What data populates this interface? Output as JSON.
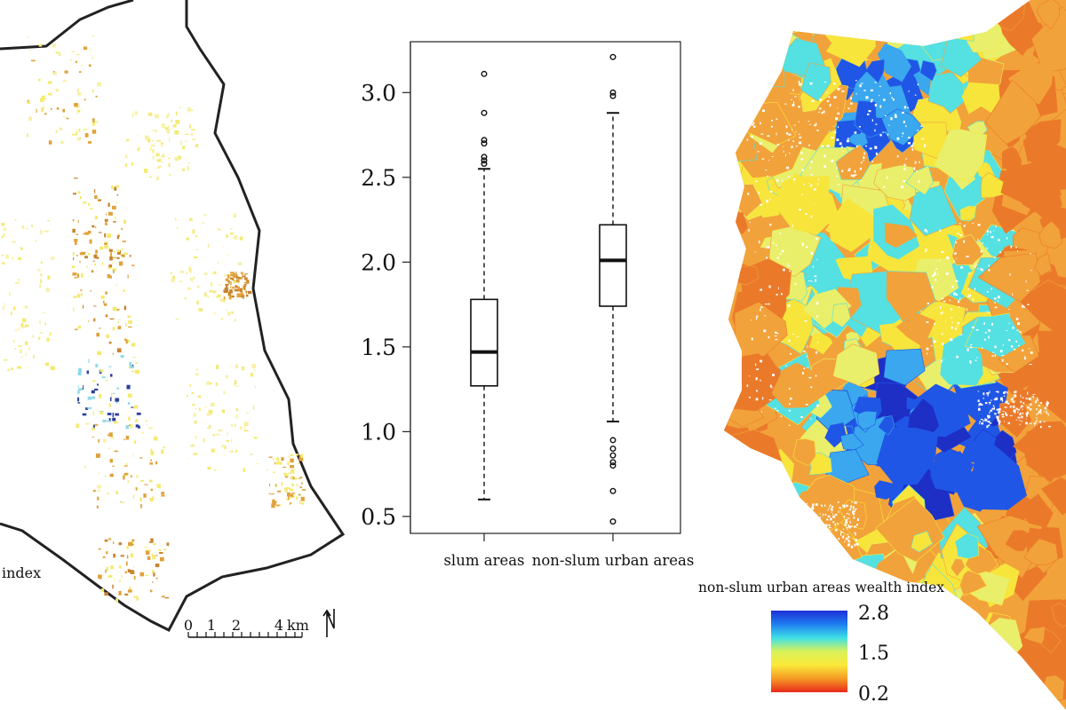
{
  "left_map": {
    "legend_fragment": "index",
    "scalebar": {
      "ticks": [
        "0",
        "1",
        "2",
        "4"
      ],
      "unit": "km",
      "north_arrow": "north-arrow-icon"
    },
    "colors": {
      "outline": "#222222",
      "yellow": "#f4ea73",
      "pale_yellow": "#f7f0a6",
      "orange": "#e0a23a",
      "brown": "#c9842e",
      "cyan": "#8fd9e6",
      "blue": "#2b3f9e",
      "green": "#a6d96a"
    }
  },
  "chart_data": {
    "type": "boxplot",
    "categories": [
      "slum areas",
      "non-slum urban areas"
    ],
    "ylim": [
      0.4,
      3.3
    ],
    "yticks": [
      "0.5",
      "1.0",
      "1.5",
      "2.0",
      "2.5",
      "3.0"
    ],
    "series": [
      {
        "values": {
          "slum areas": {
            "whisker_low": 0.6,
            "q1": 1.27,
            "median": 1.47,
            "q3": 1.78,
            "whisker_high": 2.55,
            "outliers": [
              2.58,
              2.6,
              2.62,
              2.7,
              2.72,
              2.88,
              3.11
            ]
          },
          "non-slum urban areas": {
            "whisker_low": 1.06,
            "q1": 1.74,
            "median": 2.01,
            "q3": 2.22,
            "whisker_high": 2.88,
            "outliers": [
              0.47,
              0.65,
              0.8,
              0.82,
              0.86,
              0.9,
              0.95,
              2.98,
              3.0,
              3.21
            ]
          }
        }
      }
    ]
  },
  "right_map": {
    "legend": {
      "title": "non-slum urban areas wealth index",
      "labels": [
        "2.8",
        "1.5",
        "0.2"
      ],
      "gradient": [
        "#1d2fd8",
        "#1e7ef0",
        "#3ee0e6",
        "#d9f25a",
        "#fbe93a",
        "#f59a25",
        "#e8281a"
      ]
    },
    "colors": {
      "orange": "#f2a23a",
      "deep_orange": "#ea7a2a",
      "yellow": "#f7e53c",
      "light_yellow": "#e9ef6a",
      "cyan": "#55e0e2",
      "light_blue": "#3aa7ee",
      "blue": "#2056e6",
      "dark_blue": "#1d2fc4",
      "red": "#e0361d"
    }
  }
}
